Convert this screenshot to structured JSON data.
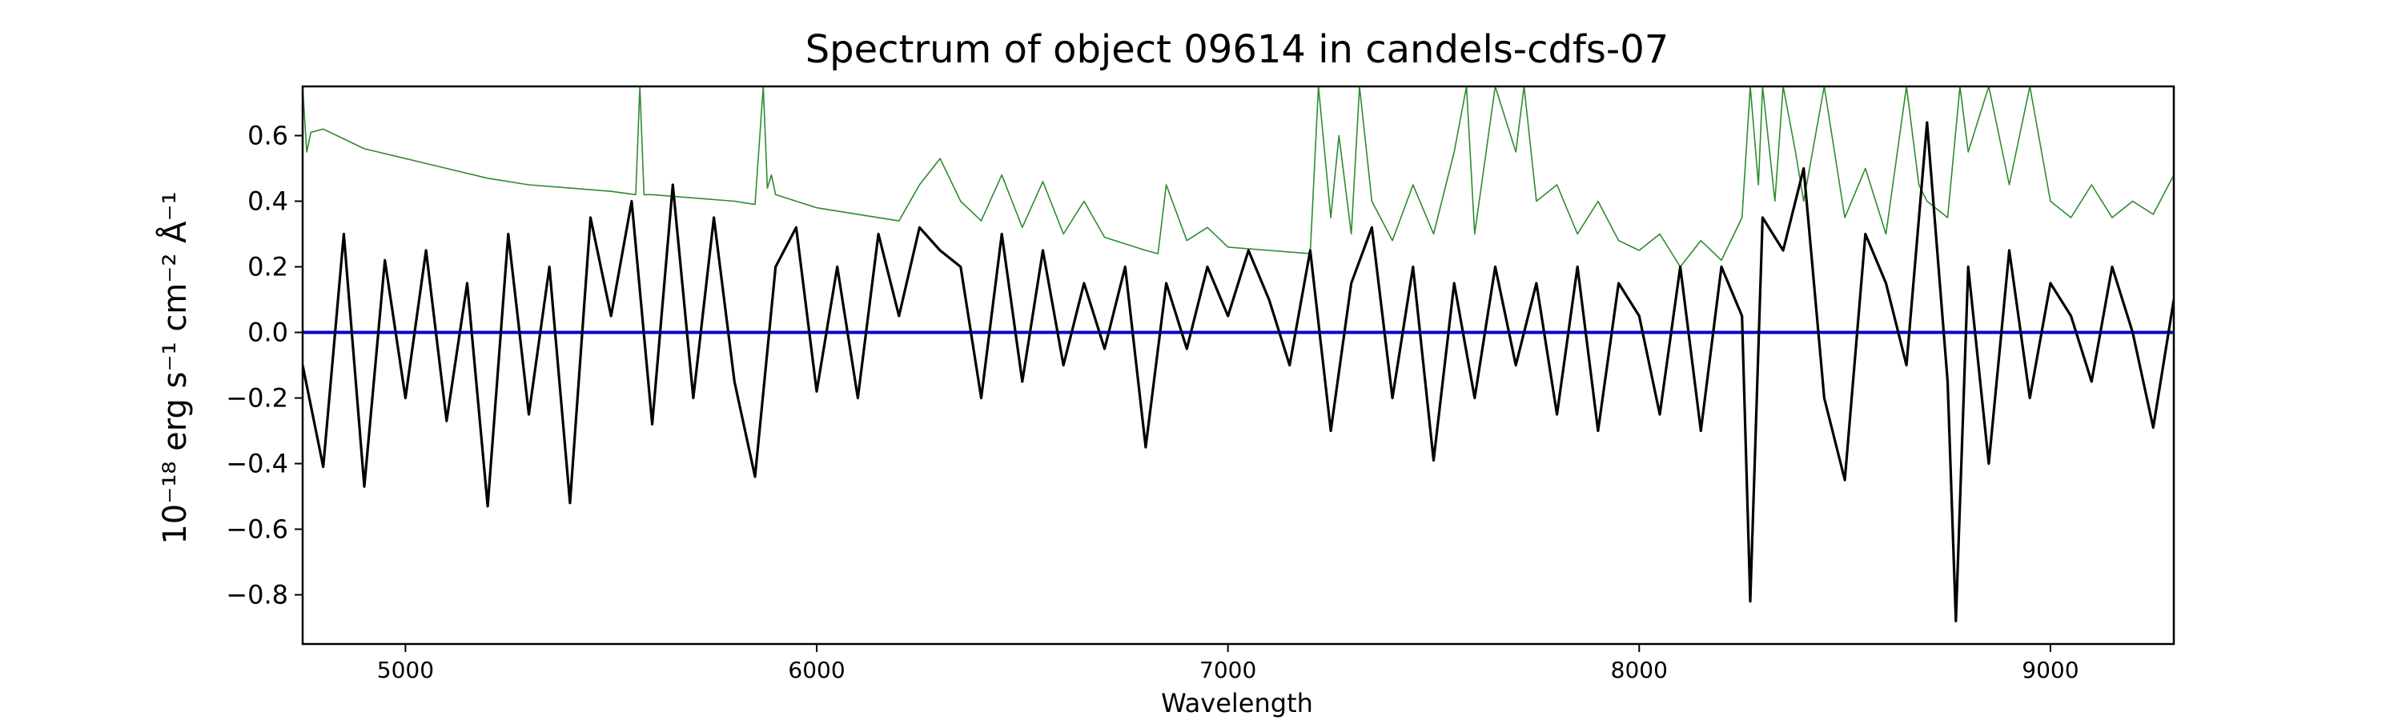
{
  "chart_data": {
    "type": "line",
    "title": "Spectrum of object 09614 in candels-cdfs-07",
    "xlabel": "Wavelength",
    "ylabel": "10⁻¹⁸ erg s⁻¹ cm⁻² Å⁻¹",
    "xlim": [
      4750,
      9300
    ],
    "ylim": [
      -0.95,
      0.75
    ],
    "xticks": [
      5000,
      6000,
      7000,
      8000,
      9000
    ],
    "yticks": [
      -0.8,
      -0.6,
      -0.4,
      -0.2,
      0.0,
      0.2,
      0.4,
      0.6
    ],
    "ytick_labels": [
      "−0.8",
      "−0.6",
      "−0.4",
      "−0.2",
      "0.0",
      "0.2",
      "0.4",
      "0.6"
    ],
    "grid": false,
    "legend": "none",
    "series": [
      {
        "role": "flux",
        "color": "#000000",
        "x": [
          4750,
          4800,
          4850,
          4900,
          4950,
          5000,
          5050,
          5100,
          5150,
          5200,
          5250,
          5300,
          5350,
          5400,
          5450,
          5500,
          5550,
          5600,
          5650,
          5700,
          5750,
          5800,
          5850,
          5900,
          5950,
          6000,
          6050,
          6100,
          6150,
          6200,
          6250,
          6300,
          6350,
          6400,
          6450,
          6500,
          6550,
          6600,
          6650,
          6700,
          6750,
          6800,
          6850,
          6900,
          6950,
          7000,
          7050,
          7100,
          7150,
          7200,
          7250,
          7300,
          7350,
          7400,
          7450,
          7500,
          7550,
          7600,
          7650,
          7700,
          7750,
          7800,
          7850,
          7900,
          7950,
          8000,
          8050,
          8100,
          8150,
          8200,
          8250,
          8270,
          8300,
          8350,
          8400,
          8450,
          8500,
          8550,
          8600,
          8650,
          8700,
          8750,
          8770,
          8800,
          8850,
          8900,
          8950,
          9000,
          9050,
          9100,
          9150,
          9200,
          9250,
          9300
        ],
        "y": [
          -0.1,
          -0.41,
          0.3,
          -0.47,
          0.22,
          -0.2,
          0.25,
          -0.27,
          0.15,
          -0.53,
          0.3,
          -0.25,
          0.2,
          -0.52,
          0.35,
          0.05,
          0.4,
          -0.28,
          0.45,
          -0.2,
          0.35,
          -0.15,
          -0.44,
          0.2,
          0.32,
          -0.18,
          0.2,
          -0.2,
          0.3,
          0.05,
          0.32,
          0.25,
          0.2,
          -0.2,
          0.3,
          -0.15,
          0.25,
          -0.1,
          0.15,
          -0.05,
          0.2,
          -0.35,
          0.15,
          -0.05,
          0.2,
          0.05,
          0.25,
          0.1,
          -0.1,
          0.25,
          -0.3,
          0.15,
          0.32,
          -0.2,
          0.2,
          -0.39,
          0.15,
          -0.2,
          0.2,
          -0.1,
          0.15,
          -0.25,
          0.2,
          -0.3,
          0.15,
          0.05,
          -0.25,
          0.2,
          -0.3,
          0.2,
          0.05,
          -0.82,
          0.35,
          0.25,
          0.5,
          -0.2,
          -0.45,
          0.3,
          0.15,
          -0.1,
          0.64,
          -0.15,
          -0.88,
          0.2,
          -0.4,
          0.25,
          -0.2,
          0.15,
          0.05,
          -0.15,
          0.2,
          0.0,
          -0.29,
          0.1
        ]
      },
      {
        "role": "uncertainty",
        "color": "#2e8b2e",
        "x": [
          4750,
          4760,
          4770,
          4800,
          4850,
          4900,
          5000,
          5100,
          5200,
          5300,
          5400,
          5500,
          5560,
          5570,
          5580,
          5600,
          5700,
          5800,
          5850,
          5870,
          5880,
          5890,
          5900,
          5950,
          6000,
          6100,
          6200,
          6250,
          6300,
          6350,
          6400,
          6450,
          6500,
          6550,
          6600,
          6650,
          6700,
          6800,
          6830,
          6850,
          6900,
          6950,
          7000,
          7100,
          7200,
          7220,
          7250,
          7270,
          7300,
          7320,
          7350,
          7400,
          7450,
          7500,
          7550,
          7580,
          7600,
          7650,
          7700,
          7720,
          7750,
          7800,
          7850,
          7900,
          7950,
          8000,
          8050,
          8100,
          8150,
          8200,
          8250,
          8270,
          8290,
          8300,
          8330,
          8350,
          8380,
          8400,
          8450,
          8500,
          8550,
          8600,
          8650,
          8680,
          8700,
          8750,
          8780,
          8800,
          8850,
          8900,
          8950,
          9000,
          9050,
          9100,
          9150,
          9200,
          9250,
          9300
        ],
        "y": [
          0.75,
          0.55,
          0.61,
          0.62,
          0.59,
          0.56,
          0.53,
          0.5,
          0.47,
          0.45,
          0.44,
          0.43,
          0.42,
          0.75,
          0.42,
          0.42,
          0.41,
          0.4,
          0.39,
          0.75,
          0.44,
          0.48,
          0.42,
          0.4,
          0.38,
          0.36,
          0.34,
          0.45,
          0.53,
          0.4,
          0.34,
          0.48,
          0.32,
          0.46,
          0.3,
          0.4,
          0.29,
          0.25,
          0.24,
          0.45,
          0.28,
          0.32,
          0.26,
          0.25,
          0.24,
          0.75,
          0.35,
          0.6,
          0.3,
          0.75,
          0.4,
          0.28,
          0.45,
          0.3,
          0.55,
          0.75,
          0.3,
          0.75,
          0.55,
          0.75,
          0.4,
          0.45,
          0.3,
          0.4,
          0.28,
          0.25,
          0.3,
          0.2,
          0.28,
          0.22,
          0.35,
          0.75,
          0.45,
          0.75,
          0.4,
          0.75,
          0.55,
          0.4,
          0.75,
          0.35,
          0.5,
          0.3,
          0.75,
          0.45,
          0.4,
          0.35,
          0.75,
          0.55,
          0.75,
          0.45,
          0.75,
          0.4,
          0.35,
          0.45,
          0.35,
          0.4,
          0.36,
          0.48
        ]
      },
      {
        "role": "zero-line",
        "color": "#0000cc",
        "x": [
          4750,
          9300
        ],
        "y": [
          0.0,
          0.0
        ]
      }
    ]
  }
}
